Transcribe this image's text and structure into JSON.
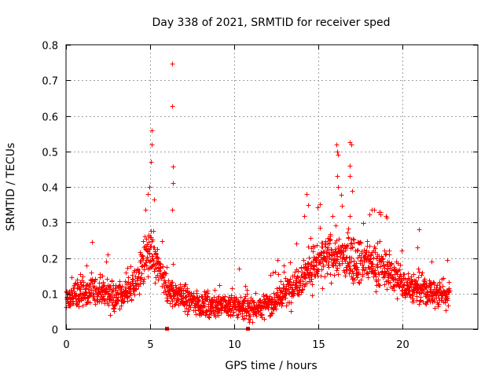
{
  "chart_data": {
    "type": "scatter",
    "title": "Day 338 of 2021, SRMTID for receiver sped",
    "xlabel": "GPS time / hours",
    "ylabel": "SRMTID / TECUs",
    "xlim": [
      0,
      24.5
    ],
    "ylim": [
      0,
      0.8
    ],
    "grid": true,
    "marker": "+",
    "color": "#ff0000",
    "x_ticks": [
      "0",
      "5",
      "10",
      "15",
      "20"
    ],
    "x_tick_values": [
      0,
      5,
      10,
      15,
      20
    ],
    "y_ticks": [
      "0",
      "0.1",
      "0.2",
      "0.3",
      "0.4",
      "0.5",
      "0.6",
      "0.7",
      "0.8"
    ],
    "y_tick_values": [
      0,
      0.1,
      0.2,
      0.3,
      0.4,
      0.5,
      0.6,
      0.7,
      0.8
    ],
    "x_range_of_data": [
      0,
      22.8
    ],
    "baseline_profile": [
      [
        0.0,
        0.09
      ],
      [
        1.0,
        0.1
      ],
      [
        2.0,
        0.11
      ],
      [
        3.0,
        0.09
      ],
      [
        4.0,
        0.12
      ],
      [
        4.5,
        0.18
      ],
      [
        5.0,
        0.22
      ],
      [
        5.5,
        0.17
      ],
      [
        6.0,
        0.11
      ],
      [
        7.0,
        0.09
      ],
      [
        8.0,
        0.07
      ],
      [
        9.0,
        0.065
      ],
      [
        10.0,
        0.065
      ],
      [
        11.0,
        0.06
      ],
      [
        12.0,
        0.07
      ],
      [
        13.0,
        0.1
      ],
      [
        14.0,
        0.15
      ],
      [
        15.0,
        0.19
      ],
      [
        16.0,
        0.21
      ],
      [
        17.0,
        0.2
      ],
      [
        18.0,
        0.19
      ],
      [
        19.0,
        0.17
      ],
      [
        20.0,
        0.13
      ],
      [
        21.0,
        0.11
      ],
      [
        22.0,
        0.1
      ],
      [
        22.8,
        0.1
      ]
    ],
    "outliers": [
      [
        6.3,
        0.747
      ],
      [
        6.3,
        0.628
      ],
      [
        6.35,
        0.458
      ],
      [
        6.35,
        0.41
      ],
      [
        6.3,
        0.337
      ],
      [
        5.1,
        0.56
      ],
      [
        5.1,
        0.52
      ],
      [
        5.05,
        0.47
      ],
      [
        4.95,
        0.4
      ],
      [
        4.85,
        0.38
      ],
      [
        16.1,
        0.52
      ],
      [
        16.15,
        0.5
      ],
      [
        16.2,
        0.49
      ],
      [
        16.15,
        0.43
      ],
      [
        16.2,
        0.4
      ],
      [
        16.9,
        0.525
      ],
      [
        16.95,
        0.52
      ],
      [
        16.9,
        0.46
      ],
      [
        16.9,
        0.43
      ],
      [
        17.0,
        0.39
      ],
      [
        14.3,
        0.38
      ],
      [
        14.4,
        0.35
      ],
      [
        18.2,
        0.335
      ],
      [
        18.6,
        0.33
      ],
      [
        21.0,
        0.28
      ],
      [
        2.5,
        0.21
      ],
      [
        10.3,
        0.17
      ],
      [
        12.3,
        0.16
      ]
    ],
    "gap_markers": [
      [
        6.0,
        0.0
      ],
      [
        10.8,
        0.0
      ]
    ]
  }
}
